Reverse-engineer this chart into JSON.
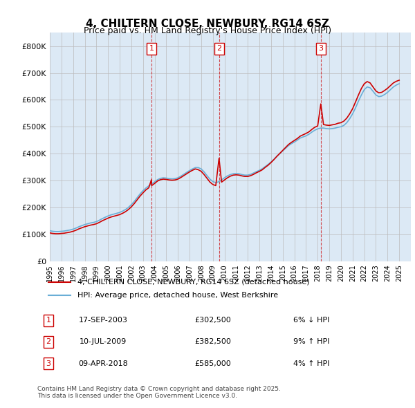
{
  "title": "4, CHILTERN CLOSE, NEWBURY, RG14 6SZ",
  "subtitle": "Price paid vs. HM Land Registry's House Price Index (HPI)",
  "background_color": "#dce9f5",
  "plot_bg_color": "#dce9f5",
  "hpi_line_color": "#6aaed6",
  "price_line_color": "#cc0000",
  "grid_color": "#bbbbbb",
  "ytick_labels": [
    "£0",
    "£100K",
    "£200K",
    "£300K",
    "£400K",
    "£500K",
    "£600K",
    "£700K",
    "£800K"
  ],
  "ytick_values": [
    0,
    100000,
    200000,
    300000,
    400000,
    500000,
    600000,
    700000,
    800000
  ],
  "ylim": [
    0,
    850000
  ],
  "xlim_start": 1995.0,
  "xlim_end": 2026.0,
  "sale_events": [
    {
      "num": 1,
      "year": 2003.72,
      "price": 302500,
      "date": "17-SEP-2003",
      "pct": "6%",
      "dir": "↓"
    },
    {
      "num": 2,
      "year": 2009.53,
      "price": 382500,
      "date": "10-JUL-2009",
      "pct": "9%",
      "dir": "↑"
    },
    {
      "num": 3,
      "year": 2018.27,
      "price": 585000,
      "date": "09-APR-2018",
      "pct": "4%",
      "dir": "↑"
    }
  ],
  "legend_entries": [
    "4, CHILTERN CLOSE, NEWBURY, RG14 6SZ (detached house)",
    "HPI: Average price, detached house, West Berkshire"
  ],
  "footnote": "Contains HM Land Registry data © Crown copyright and database right 2025.\nThis data is licensed under the Open Government Licence v3.0.",
  "hpi_data": {
    "years": [
      1995.0,
      1995.25,
      1995.5,
      1995.75,
      1996.0,
      1996.25,
      1996.5,
      1996.75,
      1997.0,
      1997.25,
      1997.5,
      1997.75,
      1998.0,
      1998.25,
      1998.5,
      1998.75,
      1999.0,
      1999.25,
      1999.5,
      1999.75,
      2000.0,
      2000.25,
      2000.5,
      2000.75,
      2001.0,
      2001.25,
      2001.5,
      2001.75,
      2002.0,
      2002.25,
      2002.5,
      2002.75,
      2003.0,
      2003.25,
      2003.5,
      2003.75,
      2004.0,
      2004.25,
      2004.5,
      2004.75,
      2005.0,
      2005.25,
      2005.5,
      2005.75,
      2006.0,
      2006.25,
      2006.5,
      2006.75,
      2007.0,
      2007.25,
      2007.5,
      2007.75,
      2008.0,
      2008.25,
      2008.5,
      2008.75,
      2009.0,
      2009.25,
      2009.5,
      2009.75,
      2010.0,
      2010.25,
      2010.5,
      2010.75,
      2011.0,
      2011.25,
      2011.5,
      2011.75,
      2012.0,
      2012.25,
      2012.5,
      2012.75,
      2013.0,
      2013.25,
      2013.5,
      2013.75,
      2014.0,
      2014.25,
      2014.5,
      2014.75,
      2015.0,
      2015.25,
      2015.5,
      2015.75,
      2016.0,
      2016.25,
      2016.5,
      2016.75,
      2017.0,
      2017.25,
      2017.5,
      2017.75,
      2018.0,
      2018.25,
      2018.5,
      2018.75,
      2019.0,
      2019.25,
      2019.5,
      2019.75,
      2020.0,
      2020.25,
      2020.5,
      2020.75,
      2021.0,
      2021.25,
      2021.5,
      2021.75,
      2022.0,
      2022.25,
      2022.5,
      2022.75,
      2023.0,
      2023.25,
      2023.5,
      2023.75,
      2024.0,
      2024.25,
      2024.5,
      2024.75,
      2025.0
    ],
    "values": [
      113000,
      111000,
      110000,
      110000,
      111000,
      112000,
      114000,
      116000,
      119000,
      123000,
      128000,
      132000,
      136000,
      139000,
      142000,
      144000,
      147000,
      152000,
      158000,
      163000,
      168000,
      172000,
      175000,
      178000,
      181000,
      186000,
      192000,
      200000,
      210000,
      222000,
      236000,
      250000,
      262000,
      272000,
      280000,
      287000,
      295000,
      303000,
      308000,
      310000,
      309000,
      307000,
      306000,
      307000,
      310000,
      316000,
      323000,
      330000,
      337000,
      343000,
      348000,
      348000,
      343000,
      332000,
      318000,
      305000,
      296000,
      292000,
      295000,
      302000,
      310000,
      317000,
      322000,
      325000,
      326000,
      325000,
      322000,
      320000,
      320000,
      323000,
      328000,
      333000,
      338000,
      344000,
      352000,
      360000,
      369000,
      379000,
      390000,
      400000,
      410000,
      420000,
      430000,
      437000,
      443000,
      450000,
      458000,
      462000,
      466000,
      472000,
      480000,
      487000,
      492000,
      495000,
      495000,
      493000,
      492000,
      493000,
      495000,
      498000,
      500000,
      505000,
      515000,
      530000,
      548000,
      570000,
      595000,
      618000,
      638000,
      648000,
      645000,
      632000,
      618000,
      612000,
      614000,
      620000,
      628000,
      638000,
      648000,
      655000,
      660000
    ]
  },
  "price_data": {
    "years": [
      1995.0,
      1995.25,
      1995.5,
      1995.75,
      1996.0,
      1996.25,
      1996.5,
      1996.75,
      1997.0,
      1997.25,
      1997.5,
      1997.75,
      1998.0,
      1998.25,
      1998.5,
      1998.75,
      1999.0,
      1999.25,
      1999.5,
      1999.75,
      2000.0,
      2000.25,
      2000.5,
      2000.75,
      2001.0,
      2001.25,
      2001.5,
      2001.75,
      2002.0,
      2002.25,
      2002.5,
      2002.75,
      2003.0,
      2003.25,
      2003.5,
      2003.72,
      2003.75,
      2004.0,
      2004.25,
      2004.5,
      2004.75,
      2005.0,
      2005.25,
      2005.5,
      2005.75,
      2006.0,
      2006.25,
      2006.5,
      2006.75,
      2007.0,
      2007.25,
      2007.5,
      2007.75,
      2008.0,
      2008.25,
      2008.5,
      2008.75,
      2009.0,
      2009.25,
      2009.53,
      2009.75,
      2010.0,
      2010.25,
      2010.5,
      2010.75,
      2011.0,
      2011.25,
      2011.5,
      2011.75,
      2012.0,
      2012.25,
      2012.5,
      2012.75,
      2013.0,
      2013.25,
      2013.5,
      2013.75,
      2014.0,
      2014.25,
      2014.5,
      2014.75,
      2015.0,
      2015.25,
      2015.5,
      2015.75,
      2016.0,
      2016.25,
      2016.5,
      2016.75,
      2017.0,
      2017.25,
      2017.5,
      2017.75,
      2018.0,
      2018.27,
      2018.5,
      2018.75,
      2019.0,
      2019.25,
      2019.5,
      2019.75,
      2020.0,
      2020.25,
      2020.5,
      2020.75,
      2021.0,
      2021.25,
      2021.5,
      2021.75,
      2022.0,
      2022.25,
      2022.5,
      2022.75,
      2023.0,
      2023.25,
      2023.5,
      2023.75,
      2024.0,
      2024.25,
      2024.5,
      2024.75,
      2025.0
    ],
    "values": [
      105000,
      103000,
      102000,
      102000,
      103000,
      104000,
      106000,
      108000,
      111000,
      115000,
      120000,
      124000,
      128000,
      131000,
      134000,
      136000,
      139000,
      144000,
      150000,
      155000,
      160000,
      164000,
      167000,
      170000,
      173000,
      178000,
      184000,
      192000,
      202000,
      214000,
      228000,
      242000,
      254000,
      265000,
      273000,
      302500,
      281000,
      289000,
      298000,
      303000,
      305000,
      304000,
      302000,
      301000,
      302000,
      305000,
      311000,
      318000,
      325000,
      332000,
      338000,
      343000,
      340000,
      334000,
      322000,
      308000,
      294000,
      285000,
      281000,
      382500,
      294000,
      302000,
      310000,
      316000,
      320000,
      321000,
      320000,
      317000,
      315000,
      315000,
      318000,
      323000,
      329000,
      334000,
      340000,
      349000,
      357000,
      367000,
      378000,
      390000,
      401000,
      412000,
      423000,
      434000,
      442000,
      449000,
      456000,
      465000,
      470000,
      475000,
      481000,
      490000,
      498000,
      503000,
      585000,
      508000,
      506000,
      505000,
      507000,
      509000,
      513000,
      515000,
      521000,
      532000,
      548000,
      567000,
      592000,
      618000,
      642000,
      660000,
      668000,
      663000,
      648000,
      633000,
      626000,
      628000,
      635000,
      643000,
      653000,
      663000,
      669000,
      673000
    ]
  }
}
